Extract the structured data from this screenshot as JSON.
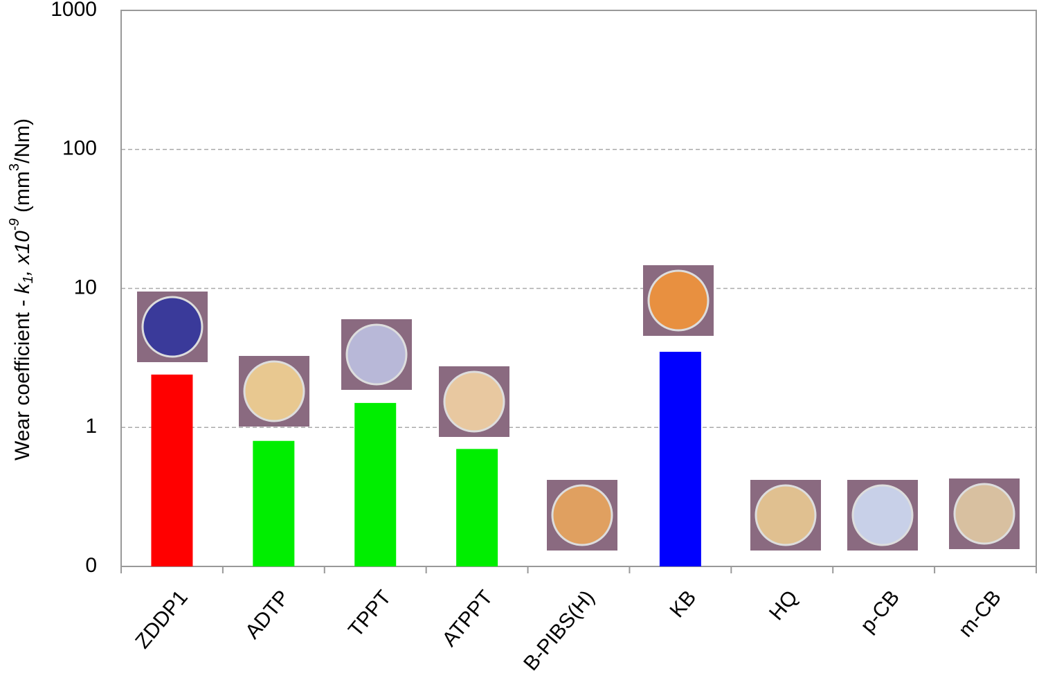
{
  "chart_data": {
    "type": "bar",
    "ylabel": [
      "Wear coefficient - ",
      "k",
      "1",
      ", x10",
      "-9",
      " (mm",
      "3",
      "/Nm)"
    ],
    "categories": [
      "ZDDP1",
      "ADTP",
      "TPPT",
      "ATPPT",
      "B-PIBS(H)",
      "KB",
      "HQ",
      "p-CB",
      "m-CB"
    ],
    "values": [
      2.4,
      0.8,
      1.5,
      0.7,
      null,
      3.5,
      null,
      null,
      null
    ],
    "colors": [
      "#ff0000",
      "#00ee00",
      "#00ee00",
      "#00ee00",
      null,
      "#0000ff",
      null,
      null,
      null
    ],
    "log_scale": true,
    "ylim": [
      0.1,
      1000
    ],
    "yticks": [
      {
        "value": 0.1,
        "label": "0"
      },
      1,
      10,
      100,
      1000
    ],
    "grid": true
  }
}
